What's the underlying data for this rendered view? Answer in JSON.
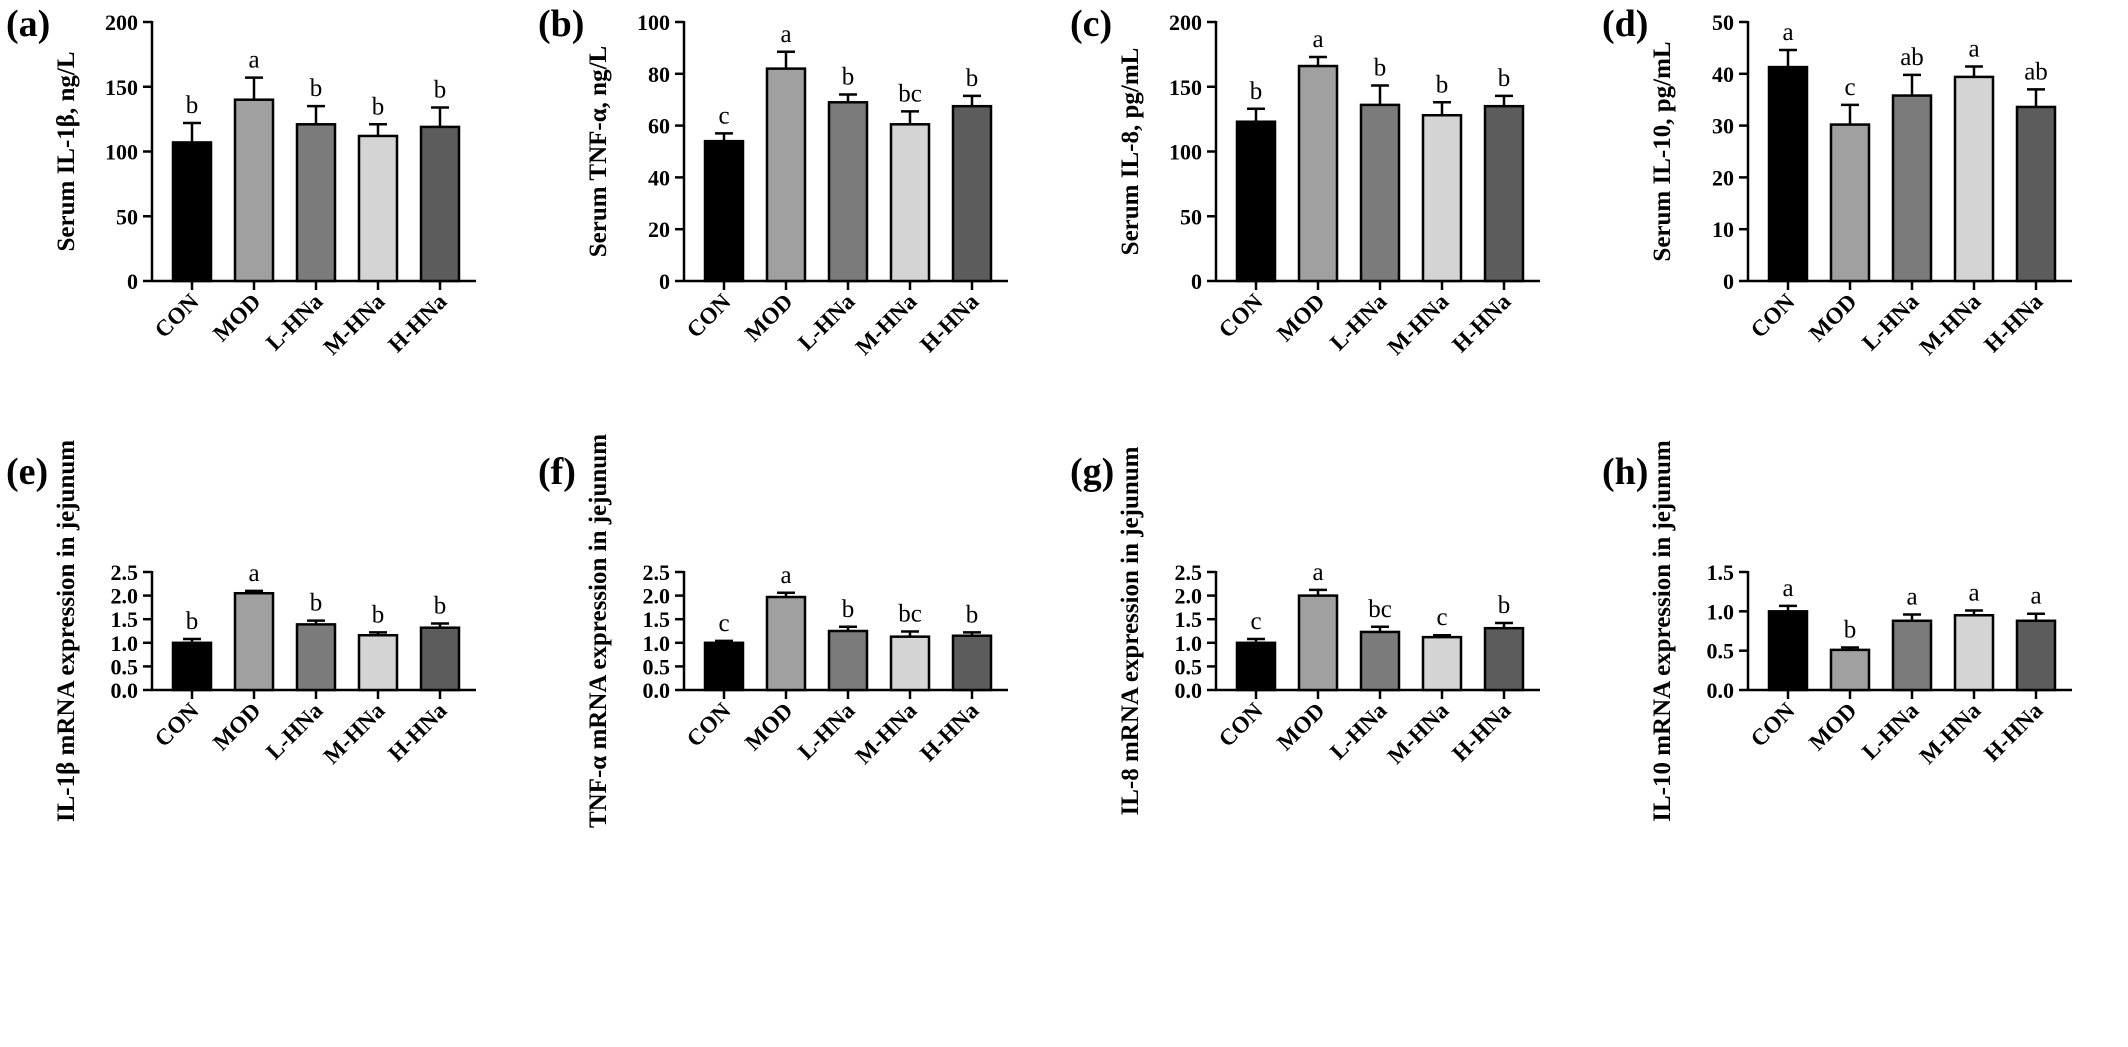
{
  "chart_data": [
    {
      "type": "bar",
      "panel": "(a)",
      "ylabel": "Serum IL-1β, ng/L",
      "categories": [
        "CON",
        "MOD",
        "L-HNa",
        "M-HNa",
        "H-HNa"
      ],
      "values": [
        107,
        140,
        121,
        112,
        119
      ],
      "errors": [
        15,
        17,
        14,
        9,
        15
      ],
      "letters": [
        "b",
        "a",
        "b",
        "b",
        "b"
      ],
      "ylim": [
        0,
        200
      ],
      "yticks": [
        0,
        50,
        100,
        150,
        200
      ],
      "ytick_labels": [
        "0",
        "50",
        "100",
        "150",
        "200"
      ]
    },
    {
      "type": "bar",
      "panel": "(b)",
      "ylabel": "Serum TNF-α, ng/L",
      "categories": [
        "CON",
        "MOD",
        "L-HNa",
        "M-HNa",
        "H-HNa"
      ],
      "values": [
        54,
        82,
        69,
        60.5,
        67.5
      ],
      "errors": [
        3,
        6.5,
        3,
        5,
        4
      ],
      "letters": [
        "c",
        "a",
        "b",
        "bc",
        "b"
      ],
      "ylim": [
        0,
        100
      ],
      "yticks": [
        0,
        20,
        40,
        60,
        80,
        100
      ],
      "ytick_labels": [
        "0",
        "20",
        "40",
        "60",
        "80",
        "100"
      ]
    },
    {
      "type": "bar",
      "panel": "(c)",
      "ylabel": "Serum IL-8, pg/mL",
      "categories": [
        "CON",
        "MOD",
        "L-HNa",
        "M-HNa",
        "H-HNa"
      ],
      "values": [
        123,
        166,
        136,
        128,
        135
      ],
      "errors": [
        10,
        7,
        15,
        10,
        8
      ],
      "letters": [
        "b",
        "a",
        "b",
        "b",
        "b"
      ],
      "ylim": [
        0,
        200
      ],
      "yticks": [
        0,
        50,
        100,
        150,
        200
      ],
      "ytick_labels": [
        "0",
        "50",
        "100",
        "150",
        "200"
      ]
    },
    {
      "type": "bar",
      "panel": "(d)",
      "ylabel": "Serum IL-10, pg/mL",
      "categories": [
        "CON",
        "MOD",
        "L-HNa",
        "M-HNa",
        "H-HNa"
      ],
      "values": [
        41.3,
        30.2,
        35.8,
        39.4,
        33.6
      ],
      "errors": [
        3.3,
        3.8,
        4,
        2,
        3.4
      ],
      "letters": [
        "a",
        "c",
        "ab",
        "a",
        "ab"
      ],
      "ylim": [
        0,
        50
      ],
      "yticks": [
        0,
        10,
        20,
        30,
        40,
        50
      ],
      "ytick_labels": [
        "0",
        "10",
        "20",
        "30",
        "40",
        "50"
      ]
    },
    {
      "type": "bar",
      "panel": "(e)",
      "ylabel": "IL-1β mRNA expression in jejunum",
      "categories": [
        "CON",
        "MOD",
        "L-HNa",
        "M-HNa",
        "H-HNa"
      ],
      "values": [
        1.0,
        2.05,
        1.39,
        1.16,
        1.32
      ],
      "errors": [
        0.08,
        0.05,
        0.08,
        0.06,
        0.09
      ],
      "letters": [
        "b",
        "a",
        "b",
        "b",
        "b"
      ],
      "ylim": [
        0,
        2.5
      ],
      "yticks": [
        0,
        0.5,
        1.0,
        1.5,
        2.0,
        2.5
      ],
      "ytick_labels": [
        "0.0",
        "0.5",
        "1.0",
        "1.5",
        "2.0",
        "2.5"
      ]
    },
    {
      "type": "bar",
      "panel": "(f)",
      "ylabel": "TNF-α mRNA expression in jejunum",
      "categories": [
        "CON",
        "MOD",
        "L-HNa",
        "M-HNa",
        "H-HNa"
      ],
      "values": [
        1.0,
        1.97,
        1.25,
        1.13,
        1.15
      ],
      "errors": [
        0.04,
        0.09,
        0.09,
        0.11,
        0.07
      ],
      "letters": [
        "c",
        "a",
        "b",
        "bc",
        "b"
      ],
      "ylim": [
        0,
        2.5
      ],
      "yticks": [
        0,
        0.5,
        1.0,
        1.5,
        2.0,
        2.5
      ],
      "ytick_labels": [
        "0.0",
        "0.5",
        "1.0",
        "1.5",
        "2.0",
        "2.5"
      ]
    },
    {
      "type": "bar",
      "panel": "(g)",
      "ylabel": "IL-8 mRNA expression in jejunum",
      "categories": [
        "CON",
        "MOD",
        "L-HNa",
        "M-HNa",
        "H-HNa"
      ],
      "values": [
        1.0,
        2.0,
        1.23,
        1.12,
        1.31
      ],
      "errors": [
        0.08,
        0.12,
        0.11,
        0.04,
        0.11
      ],
      "letters": [
        "c",
        "a",
        "bc",
        "c",
        "b"
      ],
      "ylim": [
        0,
        2.5
      ],
      "yticks": [
        0,
        0.5,
        1.0,
        1.5,
        2.0,
        2.5
      ],
      "ytick_labels": [
        "0.0",
        "0.5",
        "1.0",
        "1.5",
        "2.0",
        "2.5"
      ]
    },
    {
      "type": "bar",
      "panel": "(h)",
      "ylabel": "IL-10 mRNA expression in jejunum",
      "categories": [
        "CON",
        "MOD",
        "L-HNa",
        "M-HNa",
        "H-HNa"
      ],
      "values": [
        1.0,
        0.51,
        0.88,
        0.95,
        0.88
      ],
      "errors": [
        0.07,
        0.03,
        0.08,
        0.06,
        0.09
      ],
      "letters": [
        "a",
        "b",
        "a",
        "a",
        "a"
      ],
      "ylim": [
        0,
        1.5
      ],
      "yticks": [
        0,
        0.5,
        1.0,
        1.5
      ],
      "ytick_labels": [
        "0.0",
        "0.5",
        "1.0",
        "1.5"
      ]
    }
  ],
  "bar_colors": [
    "#000000",
    "#a0a0a0",
    "#7b7b7b",
    "#d4d4d4",
    "#5c5c5c"
  ]
}
